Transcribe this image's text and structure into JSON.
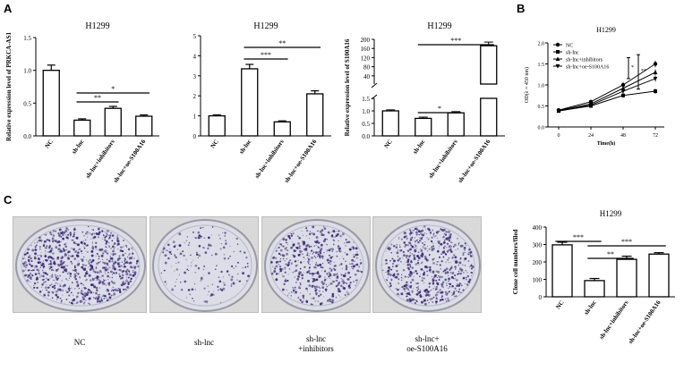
{
  "panels": {
    "A": "A",
    "B": "B",
    "C": "C"
  },
  "chart_data": [
    {
      "id": "A1",
      "type": "bar",
      "title": "H1299",
      "ylabel": "Relative expression level of PRKCA-AS1",
      "ylim": [
        0,
        1.5
      ],
      "yticks": [
        "0.0",
        "0.5",
        "1.0",
        "1.5"
      ],
      "categories": [
        "NC",
        "sh-lnc",
        "sh-lnc+inhibitors",
        "sh-lnc+oe-S100A16"
      ],
      "values": [
        1.0,
        0.24,
        0.42,
        0.3
      ],
      "errors": [
        0.08,
        0.02,
        0.03,
        0.02
      ],
      "significance": [
        {
          "from": 1,
          "to": 2,
          "label": "**"
        },
        {
          "from": 1,
          "to": 3,
          "label": "*"
        }
      ]
    },
    {
      "id": "A2",
      "type": "bar",
      "title": "H1299",
      "ylabel": "",
      "ylim": [
        0,
        5
      ],
      "yticks": [
        "0",
        "1",
        "2",
        "3",
        "4",
        "5"
      ],
      "categories": [
        "NC",
        "sh-lnc",
        "sh-lnc+inhibitors",
        "sh-lnc+oe-S100A16"
      ],
      "values": [
        1.0,
        3.35,
        0.7,
        2.1
      ],
      "errors": [
        0.05,
        0.22,
        0.05,
        0.15
      ],
      "significance": [
        {
          "from": 1,
          "to": 2,
          "label": "***"
        },
        {
          "from": 1,
          "to": 3,
          "label": "**"
        }
      ]
    },
    {
      "id": "A3",
      "type": "bar",
      "title": "H1299",
      "ylabel": "Relative expression level of S100A16",
      "ylim_lower": [
        0,
        1.5
      ],
      "ylim_upper": [
        4,
        200
      ],
      "yticks_lower": [
        "0.0",
        "0.5",
        "1.0",
        "1.5"
      ],
      "yticks_upper": [
        "40",
        "80",
        "120",
        "160",
        "200"
      ],
      "categories": [
        "NC",
        "sh-lnc",
        "sh-lnc+inhibitors",
        "sh-lnc+oe-S100A16"
      ],
      "values": [
        1.0,
        0.7,
        0.92,
        172
      ],
      "errors": [
        0.04,
        0.05,
        0.05,
        16
      ],
      "significance": [
        {
          "from": 1,
          "to": 2,
          "label": "*"
        },
        {
          "from": 1,
          "to": 3,
          "label": "***"
        }
      ]
    },
    {
      "id": "B",
      "type": "line",
      "title": "H1299",
      "xlabel": "Time(h)",
      "ylabel": "OD(λ = 450 nm)",
      "xlim": [
        0,
        72
      ],
      "ylim": [
        0,
        2.0
      ],
      "xticks": [
        "0",
        "24",
        "48",
        "72"
      ],
      "yticks": [
        "0.0",
        "0.5",
        "1.0",
        "1.5",
        "2.0"
      ],
      "x": [
        0,
        24,
        48,
        72
      ],
      "series": [
        {
          "name": "NC",
          "values": [
            0.4,
            0.6,
            1.0,
            1.5
          ],
          "errors": [
            0.03,
            0.04,
            0.06,
            0.08
          ]
        },
        {
          "name": "sh-lnc",
          "values": [
            0.38,
            0.5,
            0.75,
            0.85
          ],
          "errors": [
            0.03,
            0.03,
            0.05,
            0.06
          ]
        },
        {
          "name": "sh-lnc+inhibitors",
          "values": [
            0.39,
            0.55,
            0.92,
            1.3
          ],
          "errors": [
            0.03,
            0.04,
            0.06,
            0.07
          ]
        },
        {
          "name": "sh-lnc+oe-S100A16",
          "values": [
            0.38,
            0.52,
            0.85,
            1.15
          ],
          "errors": [
            0.03,
            0.03,
            0.05,
            0.07
          ]
        }
      ],
      "significance": [
        "*",
        "**"
      ]
    },
    {
      "id": "C",
      "type": "bar",
      "title": "H1299",
      "ylabel": "Clone cell numbers/filed",
      "ylim": [
        0,
        400
      ],
      "yticks": [
        "0",
        "100",
        "200",
        "300",
        "400"
      ],
      "categories": [
        "NC",
        "sh-lnc",
        "sh-lnc+inhibitors",
        "sh-lnc+oe-S100A16"
      ],
      "values": [
        298,
        93,
        215,
        245
      ],
      "errors": [
        15,
        12,
        18,
        8
      ],
      "significance": [
        {
          "from": 0,
          "to": 1,
          "label": "***"
        },
        {
          "from": 1,
          "to": 2,
          "label": "**"
        },
        {
          "from": 1,
          "to": 3,
          "label": "***"
        }
      ]
    }
  ],
  "dishes": [
    {
      "caption": "NC",
      "density": 900
    },
    {
      "caption": "sh-lnc",
      "density": 180
    },
    {
      "caption": "sh-lnc\n+inhibitors",
      "density": 520
    },
    {
      "caption": "sh-lnc+\noe-S100A16",
      "density": 640
    }
  ],
  "colors": {
    "dish_stain": "#3a2a7a",
    "dish_bg": "#dcdde6"
  }
}
